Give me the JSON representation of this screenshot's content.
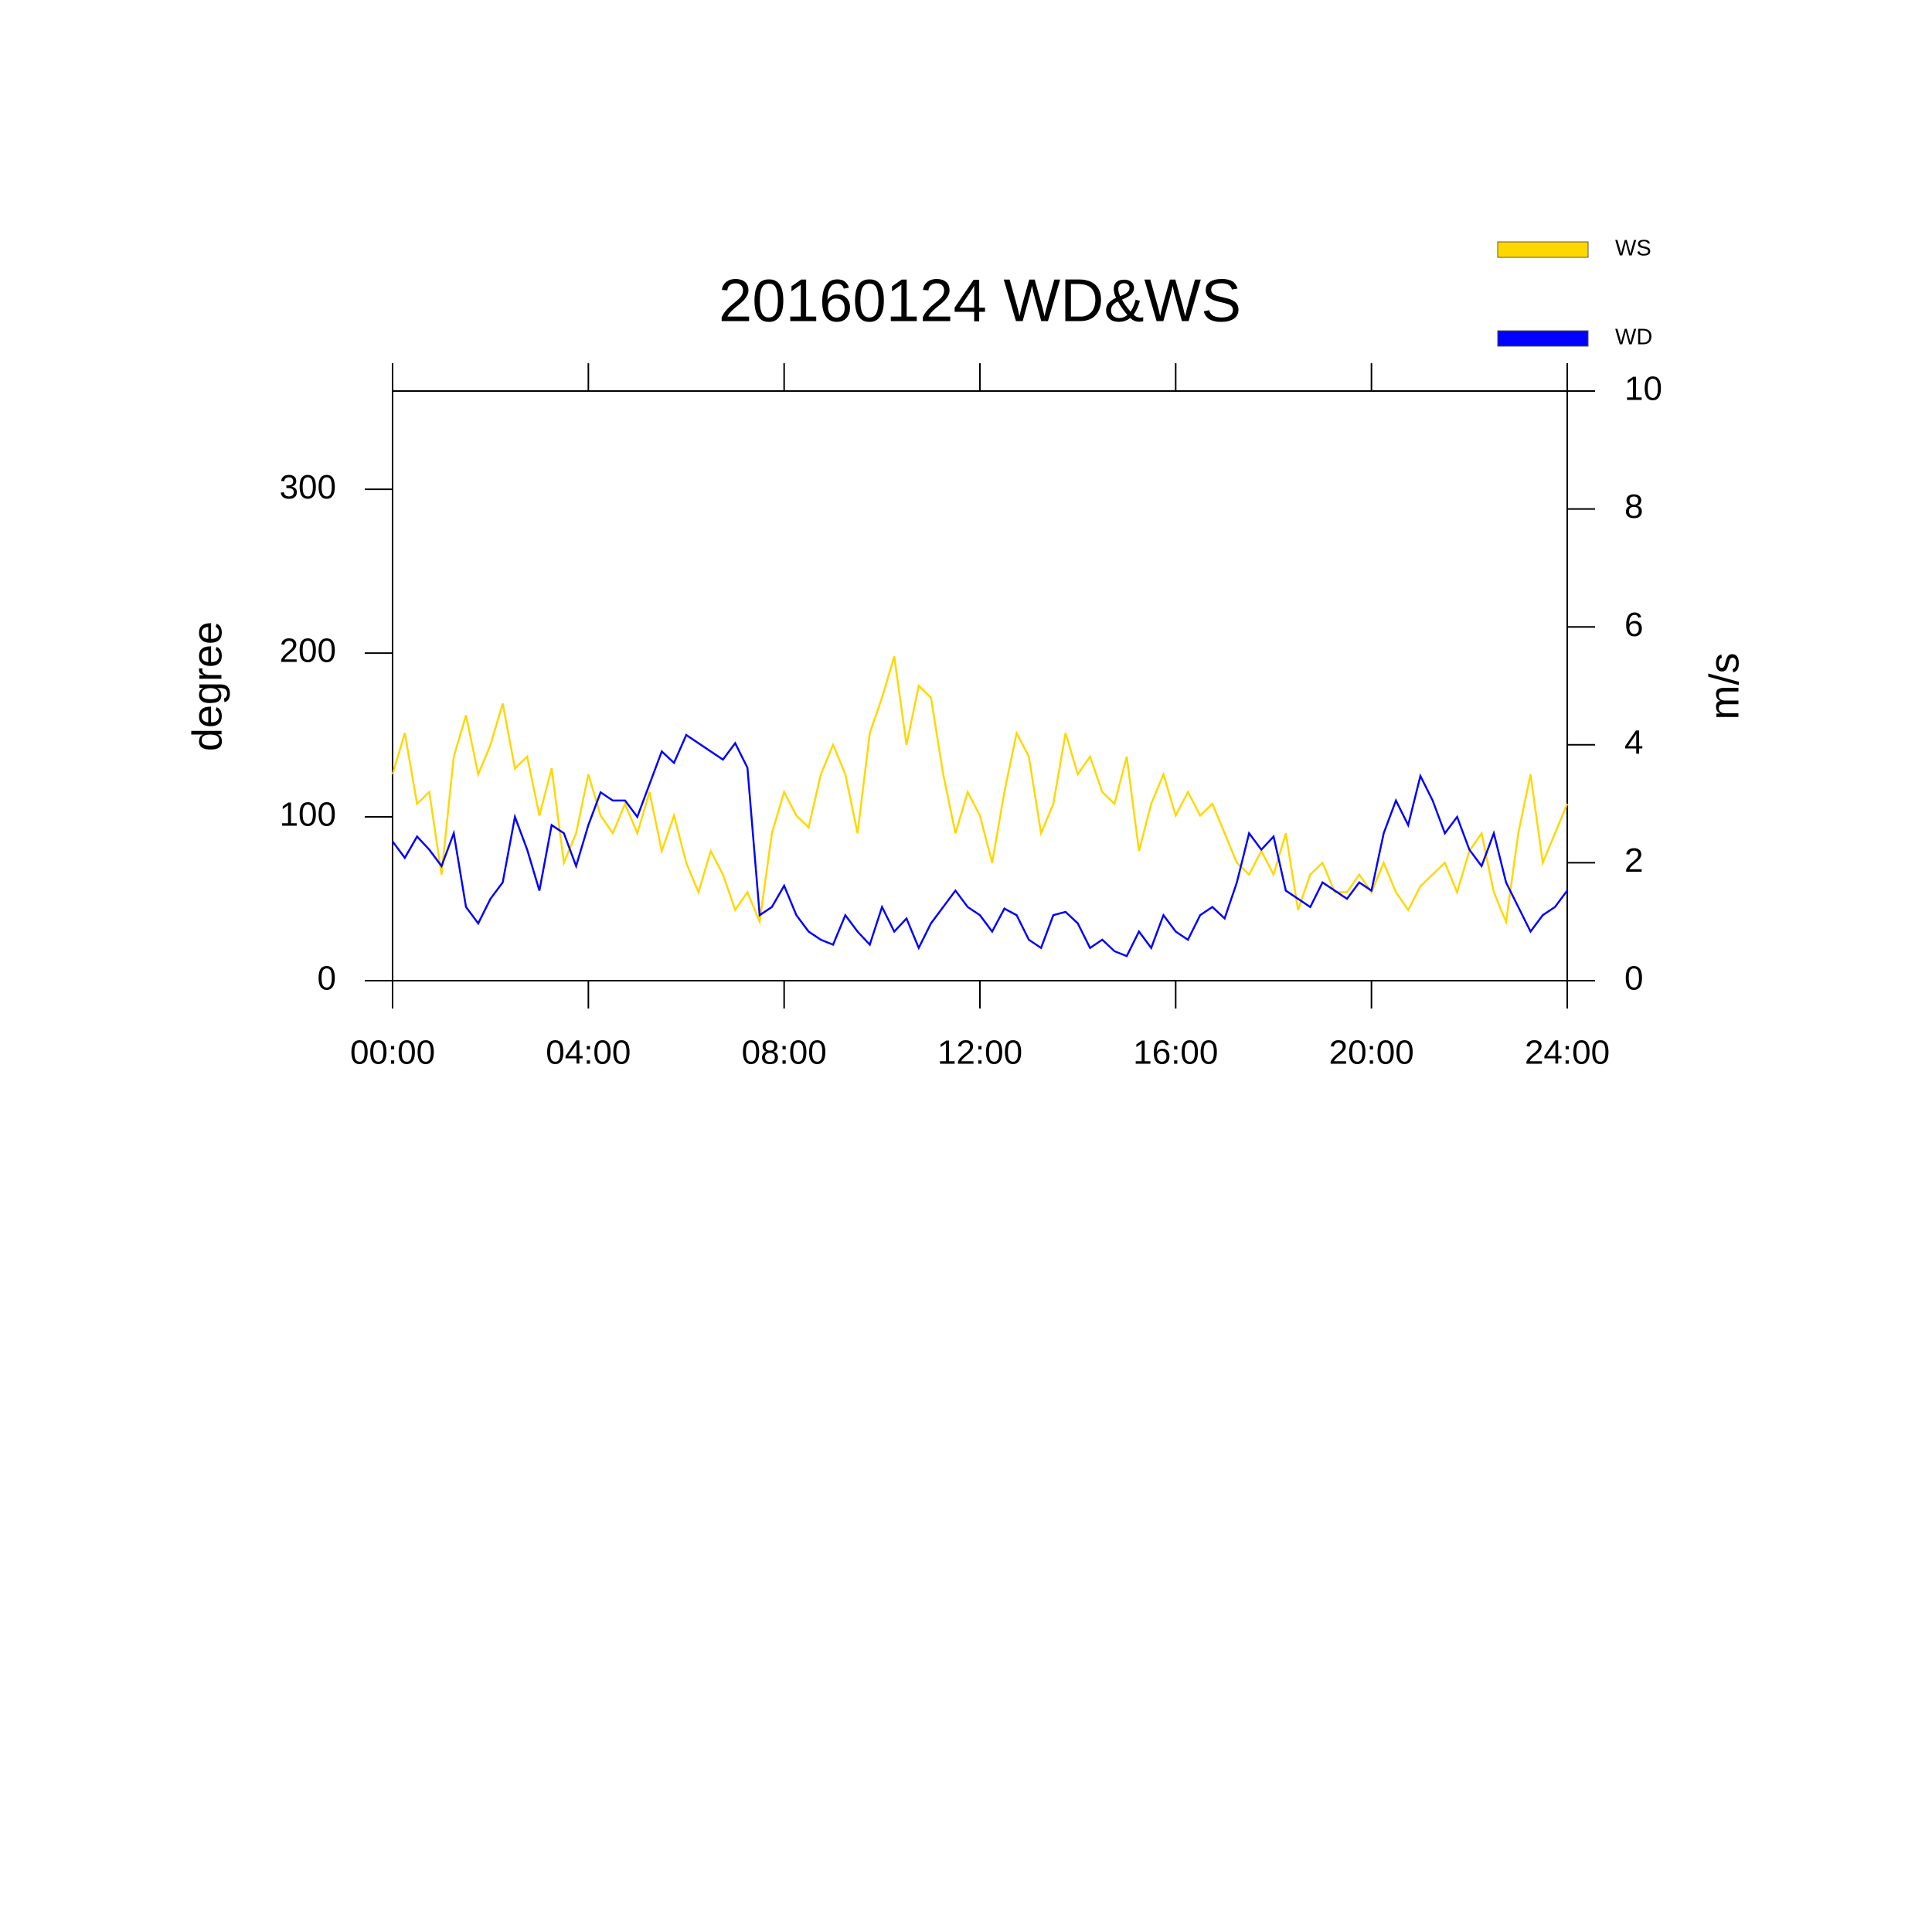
{
  "chart_data": {
    "type": "line",
    "title": "20160124 WD&WS",
    "y_label": "degree",
    "y2_label": "m/s",
    "x": [
      0,
      0.25,
      0.5,
      0.75,
      1,
      1.25,
      1.5,
      1.75,
      2,
      2.25,
      2.5,
      2.75,
      3,
      3.25,
      3.5,
      3.75,
      4,
      4.25,
      4.5,
      4.75,
      5,
      5.25,
      5.5,
      5.75,
      6,
      6.25,
      6.5,
      6.75,
      7,
      7.25,
      7.5,
      7.75,
      8,
      8.25,
      8.5,
      8.75,
      9,
      9.25,
      9.5,
      9.75,
      10,
      10.25,
      10.5,
      10.75,
      11,
      11.25,
      11.5,
      11.75,
      12,
      12.25,
      12.5,
      12.75,
      13,
      13.25,
      13.5,
      13.75,
      14,
      14.25,
      14.5,
      14.75,
      15,
      15.25,
      15.5,
      15.75,
      16,
      16.25,
      16.5,
      16.75,
      17,
      17.25,
      17.5,
      17.75,
      18,
      18.25,
      18.5,
      18.75,
      19,
      19.25,
      19.5,
      19.75,
      20,
      20.25,
      20.5,
      20.75,
      21,
      21.25,
      21.5,
      21.75,
      22,
      22.25,
      22.5,
      22.75,
      23,
      23.25,
      23.5,
      23.75,
      24
    ],
    "series": [
      {
        "name": "WS",
        "color": "#ffd700",
        "axis": "y2",
        "values": [
          3.5,
          4.2,
          3.0,
          3.2,
          1.8,
          3.8,
          4.5,
          3.5,
          4.0,
          4.7,
          3.6,
          3.8,
          2.8,
          3.6,
          2.0,
          2.5,
          3.5,
          2.8,
          2.5,
          3.0,
          2.5,
          3.2,
          2.2,
          2.8,
          2.0,
          1.5,
          2.2,
          1.8,
          1.2,
          1.5,
          1.0,
          2.5,
          3.2,
          2.8,
          2.6,
          3.5,
          4.0,
          3.5,
          2.5,
          4.2,
          4.8,
          5.5,
          4.0,
          5.0,
          4.8,
          3.5,
          2.5,
          3.2,
          2.8,
          2.0,
          3.2,
          4.2,
          3.8,
          2.5,
          3.0,
          4.2,
          3.5,
          3.8,
          3.2,
          3.0,
          3.8,
          2.2,
          3.0,
          3.5,
          2.8,
          3.2,
          2.8,
          3.0,
          2.5,
          2.0,
          1.8,
          2.2,
          1.8,
          2.5,
          1.2,
          1.8,
          2.0,
          1.5,
          1.5,
          1.8,
          1.5,
          2.0,
          1.5,
          1.2,
          1.6,
          1.8,
          2.0,
          1.5,
          2.2,
          2.5,
          1.5,
          1.0,
          2.5,
          3.5,
          2.0,
          2.5,
          3.0
        ]
      },
      {
        "name": "WD",
        "color": "#0000ff",
        "axis": "y",
        "values": [
          85,
          75,
          88,
          80,
          70,
          90,
          45,
          35,
          50,
          60,
          100,
          80,
          55,
          95,
          90,
          70,
          95,
          115,
          110,
          110,
          100,
          120,
          140,
          133,
          150,
          145,
          140,
          135,
          145,
          130,
          40,
          45,
          58,
          40,
          30,
          25,
          22,
          40,
          30,
          22,
          45,
          30,
          38,
          20,
          35,
          45,
          55,
          45,
          40,
          30,
          44,
          40,
          25,
          20,
          40,
          42,
          35,
          20,
          25,
          18,
          15,
          30,
          20,
          40,
          30,
          25,
          40,
          45,
          38,
          60,
          90,
          80,
          88,
          55,
          50,
          45,
          60,
          55,
          50,
          60,
          55,
          90,
          110,
          95,
          125,
          110,
          90,
          100,
          80,
          70,
          90,
          60,
          45,
          30,
          40,
          45,
          55
        ]
      }
    ],
    "xlim": [
      0,
      24
    ],
    "xticks": [
      {
        "value": 0,
        "label": "00:00"
      },
      {
        "value": 4,
        "label": "04:00"
      },
      {
        "value": 8,
        "label": "08:00"
      },
      {
        "value": 12,
        "label": "12:00"
      },
      {
        "value": 16,
        "label": "16:00"
      },
      {
        "value": 20,
        "label": "20:00"
      },
      {
        "value": 24,
        "label": "24:00"
      }
    ],
    "ylim": [
      0,
      360
    ],
    "yticks": [
      0,
      100,
      200,
      300
    ],
    "y2lim": [
      0,
      10
    ],
    "y2ticks": [
      0,
      2,
      4,
      6,
      8,
      10
    ],
    "legend": "top-right"
  }
}
